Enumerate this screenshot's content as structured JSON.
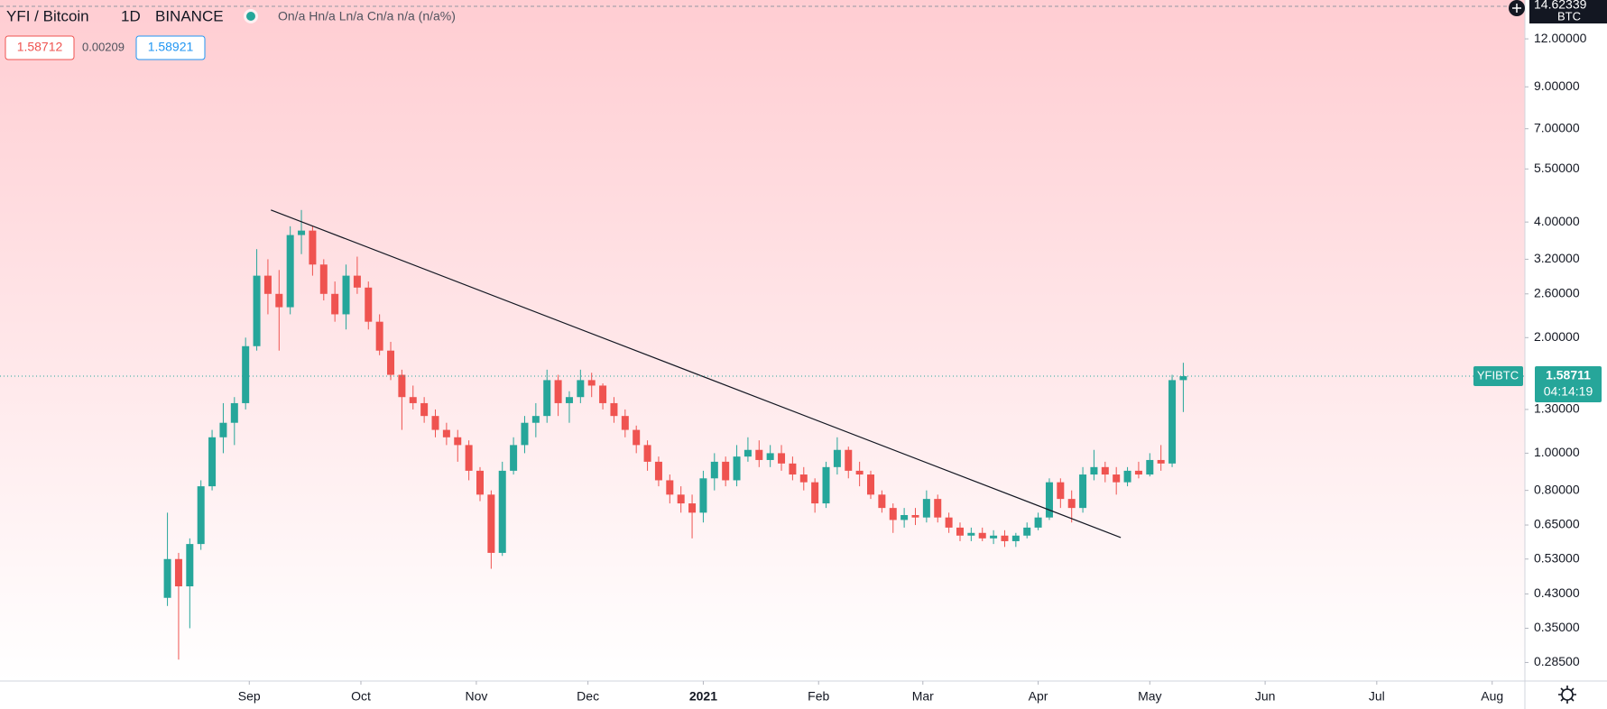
{
  "header": {
    "symbol": "YFI / Bitcoin",
    "interval": "1D",
    "exchange": "BINANCE",
    "ohlc_text": "On/a Hn/a Ln/a Cn/a n/a (n/a%)",
    "bid": 1.58712,
    "spread": 0.00209,
    "ask": 1.58921
  },
  "chart_data": {
    "type": "candlestick",
    "log_scale": true,
    "grid": false,
    "up_color": "#26a69a",
    "down_color": "#ef5350",
    "currency": "BTC",
    "axis_top_label": 14.62339,
    "open": [
      0.42,
      0.53,
      0.45,
      0.58,
      0.82,
      1.1,
      1.2,
      1.35,
      1.9,
      2.9,
      2.6,
      2.4,
      3.7,
      3.8,
      3.1,
      2.6,
      2.3,
      2.9,
      2.7,
      2.2,
      1.85,
      1.6,
      1.4,
      1.35,
      1.25,
      1.15,
      1.1,
      1.05,
      0.9,
      0.78,
      0.55,
      0.9,
      1.05,
      1.2,
      1.25,
      1.55,
      1.35,
      1.4,
      1.55,
      1.5,
      1.35,
      1.25,
      1.15,
      1.05,
      0.95,
      0.85,
      0.78,
      0.74,
      0.7,
      0.86,
      0.95,
      0.85,
      0.98,
      1.02,
      0.96,
      1.0,
      0.94,
      0.88,
      0.84,
      0.74,
      0.92,
      1.02,
      0.9,
      0.88,
      0.78,
      0.72,
      0.67,
      0.69,
      0.68,
      0.76,
      0.68,
      0.64,
      0.61,
      0.62,
      0.6,
      0.61,
      0.59,
      0.61,
      0.64,
      0.68,
      0.84,
      0.76,
      0.72,
      0.88,
      0.92,
      0.88,
      0.84,
      0.9,
      0.88,
      0.96,
      0.94,
      1.55
    ],
    "high": [
      0.7,
      0.55,
      0.6,
      0.85,
      1.15,
      1.35,
      1.4,
      2.0,
      3.4,
      3.2,
      3.0,
      3.9,
      4.3,
      3.9,
      3.2,
      2.8,
      3.1,
      3.25,
      2.8,
      2.3,
      1.95,
      1.65,
      1.5,
      1.4,
      1.3,
      1.2,
      1.15,
      1.08,
      0.92,
      0.8,
      0.95,
      1.1,
      1.25,
      1.35,
      1.65,
      1.6,
      1.45,
      1.65,
      1.62,
      1.52,
      1.4,
      1.3,
      1.18,
      1.08,
      0.98,
      0.88,
      0.82,
      0.78,
      0.9,
      1.0,
      0.98,
      1.05,
      1.1,
      1.08,
      1.05,
      1.05,
      0.98,
      0.92,
      0.86,
      0.95,
      1.1,
      1.04,
      0.95,
      0.9,
      0.8,
      0.74,
      0.72,
      0.72,
      0.8,
      0.78,
      0.7,
      0.66,
      0.64,
      0.64,
      0.63,
      0.63,
      0.62,
      0.66,
      0.7,
      0.86,
      0.86,
      0.8,
      0.92,
      1.02,
      0.95,
      0.92,
      0.92,
      0.95,
      1.0,
      1.05,
      1.6,
      1.72
    ],
    "low": [
      0.4,
      0.29,
      0.35,
      0.56,
      0.8,
      1.0,
      1.05,
      1.3,
      1.85,
      2.3,
      1.85,
      2.3,
      3.3,
      2.9,
      2.5,
      2.2,
      2.1,
      2.6,
      2.1,
      1.8,
      1.55,
      1.15,
      1.3,
      1.2,
      1.1,
      1.05,
      0.95,
      0.85,
      0.75,
      0.5,
      0.54,
      0.88,
      1.0,
      1.1,
      1.2,
      1.25,
      1.2,
      1.35,
      1.4,
      1.3,
      1.2,
      1.1,
      1.0,
      0.9,
      0.82,
      0.74,
      0.7,
      0.6,
      0.66,
      0.8,
      0.82,
      0.82,
      0.95,
      0.92,
      0.92,
      0.9,
      0.85,
      0.8,
      0.7,
      0.72,
      0.88,
      0.86,
      0.82,
      0.76,
      0.7,
      0.62,
      0.64,
      0.65,
      0.66,
      0.66,
      0.62,
      0.59,
      0.59,
      0.59,
      0.58,
      0.57,
      0.57,
      0.6,
      0.63,
      0.67,
      0.72,
      0.66,
      0.7,
      0.85,
      0.84,
      0.78,
      0.82,
      0.86,
      0.87,
      0.9,
      0.92,
      1.28
    ],
    "close": [
      0.53,
      0.45,
      0.58,
      0.82,
      1.1,
      1.2,
      1.35,
      1.9,
      2.9,
      2.6,
      2.4,
      3.7,
      3.8,
      3.1,
      2.6,
      2.3,
      2.9,
      2.7,
      2.2,
      1.85,
      1.6,
      1.4,
      1.35,
      1.25,
      1.15,
      1.1,
      1.05,
      0.9,
      0.78,
      0.55,
      0.9,
      1.05,
      1.2,
      1.25,
      1.55,
      1.35,
      1.4,
      1.55,
      1.5,
      1.35,
      1.25,
      1.15,
      1.05,
      0.95,
      0.85,
      0.78,
      0.74,
      0.7,
      0.86,
      0.95,
      0.85,
      0.98,
      1.02,
      0.96,
      1.0,
      0.94,
      0.88,
      0.84,
      0.74,
      0.92,
      1.02,
      0.9,
      0.88,
      0.78,
      0.72,
      0.67,
      0.69,
      0.68,
      0.76,
      0.68,
      0.64,
      0.61,
      0.62,
      0.6,
      0.61,
      0.59,
      0.61,
      0.64,
      0.68,
      0.84,
      0.76,
      0.72,
      0.88,
      0.92,
      0.88,
      0.84,
      0.9,
      0.88,
      0.96,
      0.94,
      1.55,
      1.58711
    ],
    "ylim": [
      0.255,
      15.15
    ],
    "yticks": [
      {
        "value": 12,
        "label": "12.00000"
      },
      {
        "value": 9,
        "label": "9.00000"
      },
      {
        "value": 7,
        "label": "7.00000"
      },
      {
        "value": 5.5,
        "label": "5.50000"
      },
      {
        "value": 4,
        "label": "4.00000"
      },
      {
        "value": 3.2,
        "label": "3.20000"
      },
      {
        "value": 2.6,
        "label": "2.60000"
      },
      {
        "value": 2,
        "label": "2.00000"
      },
      {
        "value": 1.3,
        "label": "1.30000"
      },
      {
        "value": 1,
        "label": "1.00000"
      },
      {
        "value": 0.8,
        "label": "0.80000"
      },
      {
        "value": 0.65,
        "label": "0.65000"
      },
      {
        "value": 0.53,
        "label": "0.53000"
      },
      {
        "value": 0.43,
        "label": "0.43000"
      },
      {
        "value": 0.35,
        "label": "0.35000"
      },
      {
        "value": 0.285,
        "label": "0.28500"
      }
    ],
    "xlim": [
      -15,
      121.6
    ],
    "xticks": [
      {
        "value": 7.33,
        "label": "Sep"
      },
      {
        "value": 17.33,
        "label": "Oct"
      },
      {
        "value": 27.67,
        "label": "Nov"
      },
      {
        "value": 37.67,
        "label": "Dec"
      },
      {
        "value": 48,
        "label": "2021"
      },
      {
        "value": 58.33,
        "label": "Feb"
      },
      {
        "value": 67.67,
        "label": "Mar"
      },
      {
        "value": 78,
        "label": "Apr"
      },
      {
        "value": 88,
        "label": "May"
      },
      {
        "value": 98.33,
        "label": "Jun"
      },
      {
        "value": 108.33,
        "label": "Jul"
      },
      {
        "value": 118.67,
        "label": "Aug"
      }
    ],
    "last_price": {
      "label": "YFIBTC",
      "value": 1.58711,
      "countdown": "04:14:19"
    },
    "trendline": {
      "x": [
        9.27,
        85.4
      ],
      "y": [
        4.3,
        0.603
      ]
    }
  }
}
